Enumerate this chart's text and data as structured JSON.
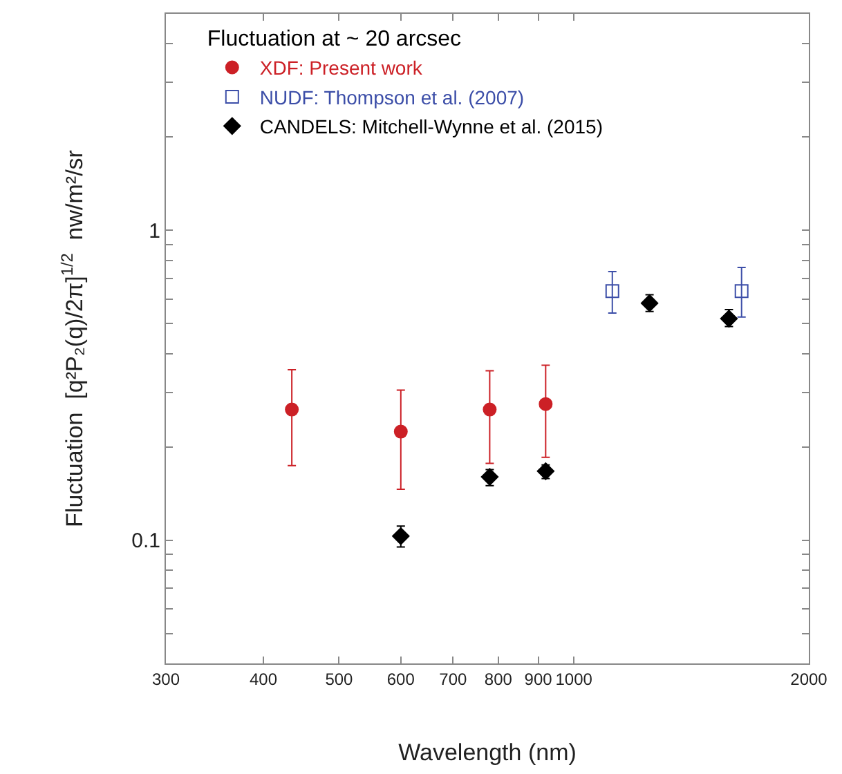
{
  "chart_data": {
    "type": "scatter",
    "xlabel": "Wavelength (nm)",
    "ylabel": "Fluctuation  [q²P₂(q)/2π]$^{1/2}$  nw/m²/sr",
    "legend_title": "Fluctuation at ~ 20 arcsec",
    "legend": "top left",
    "log": "xy",
    "xlim": [
      300,
      2000
    ],
    "xticks": [
      300,
      400,
      500,
      600,
      700,
      800,
      900,
      1000,
      2000
    ],
    "ylim": [
      0.04,
      5
    ],
    "yticks": [
      {
        "value": 0.05,
        "label": null
      },
      {
        "value": 0.06,
        "label": null
      },
      {
        "value": 0.07,
        "label": null
      },
      {
        "value": 0.08,
        "label": null
      },
      {
        "value": 0.09,
        "label": null
      },
      0.1,
      {
        "value": 0.2,
        "label": null
      },
      {
        "value": 0.3,
        "label": null
      },
      {
        "value": 0.4,
        "label": null
      },
      {
        "value": 0.5,
        "label": null
      },
      {
        "value": 0.6,
        "label": null
      },
      {
        "value": 0.7,
        "label": null
      },
      {
        "value": 0.8,
        "label": null
      },
      {
        "value": 0.9,
        "label": null
      },
      1,
      {
        "value": 2,
        "label": null
      },
      {
        "value": 3,
        "label": null
      },
      {
        "value": 4,
        "label": null
      }
    ],
    "series": [
      {
        "name": "XDF: Present work",
        "color": "#cc2026",
        "marker": "circle",
        "x": [
          435,
          600,
          780,
          920
        ],
        "values": [
          0.264,
          0.224,
          0.264,
          0.275
        ],
        "errors": [
          [
            0.174,
            0.355
          ],
          [
            0.146,
            0.305
          ],
          [
            0.177,
            0.352
          ],
          [
            0.185,
            0.367
          ]
        ]
      },
      {
        "name": "NUDF: Thompson et al. (2007)",
        "color": "#3c4ea8",
        "marker": "square",
        "x": [
          1120,
          1640
        ],
        "values": [
          0.637,
          0.637
        ],
        "errors": [
          [
            0.541,
            0.736
          ],
          [
            0.525,
            0.759
          ]
        ]
      },
      {
        "name": "CANDELS: Mitchell-Wynne et al. (2015)",
        "color": "#000000",
        "marker": "diamond",
        "x": [
          600,
          780,
          920,
          1250,
          1580
        ],
        "values": [
          0.103,
          0.16,
          0.167,
          0.582,
          0.519
        ],
        "errors": [
          [
            0.095,
            0.111
          ],
          [
            0.15,
            0.169
          ],
          [
            0.158,
            0.175
          ],
          [
            0.547,
            0.62
          ],
          [
            0.489,
            0.555
          ]
        ]
      }
    ]
  }
}
